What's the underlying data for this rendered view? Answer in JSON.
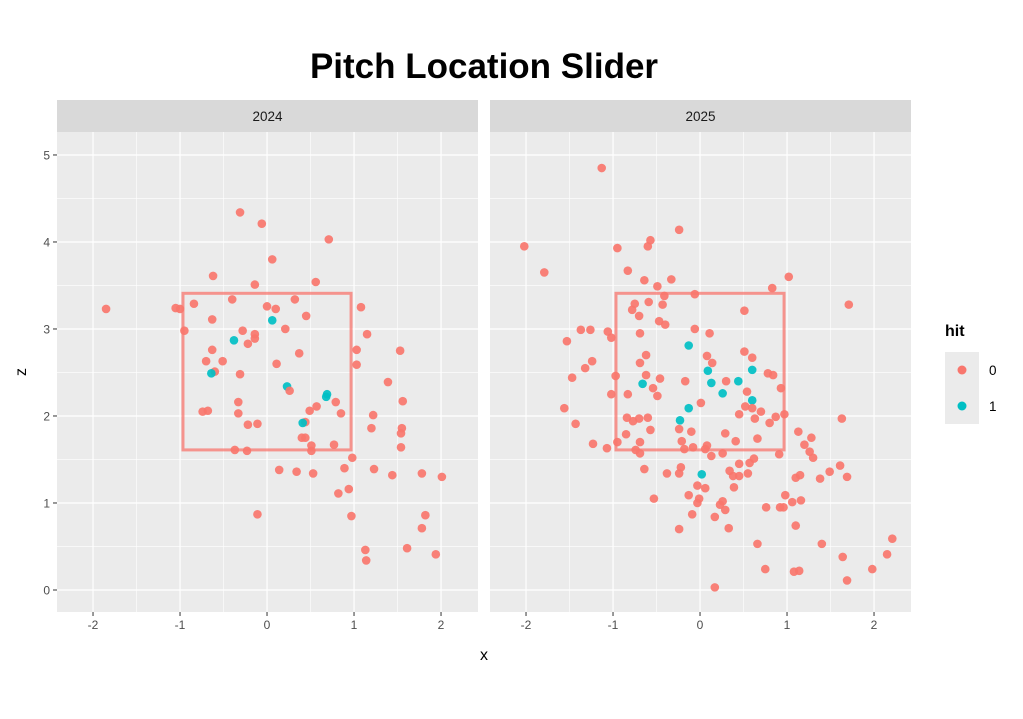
{
  "chart_data": {
    "type": "scatter",
    "title": "Pitch Location Slider",
    "xlabel": "x",
    "ylabel": "z",
    "xlim": [
      -2.414,
      2.425
    ],
    "ylim": [
      -0.253,
      5.264
    ],
    "x_ticks": [
      -2,
      -1,
      0,
      1,
      2
    ],
    "y_ticks": [
      0,
      1,
      2,
      3,
      4,
      5
    ],
    "grid": true,
    "strike_zone": {
      "x": [
        -0.966,
        0.966
      ],
      "z": [
        1.61,
        3.41
      ]
    },
    "legend": {
      "title": "hit",
      "position": "right",
      "entries": [
        {
          "label": "0",
          "color": "#F8766D"
        },
        {
          "label": "1",
          "color": "#00BFC4"
        }
      ]
    },
    "colors": {
      "0": "#F8766D",
      "1": "#00BFC4",
      "zone": "#F8766D"
    },
    "facets": [
      {
        "label": "2024",
        "points": [
          [
            -1.85,
            3.23,
            0
          ],
          [
            -0.31,
            4.34,
            0
          ],
          [
            -0.06,
            4.21,
            0
          ],
          [
            0.71,
            4.03,
            0
          ],
          [
            0.06,
            3.8,
            0
          ],
          [
            -0.62,
            3.61,
            0
          ],
          [
            0.56,
            3.54,
            0
          ],
          [
            -0.14,
            3.51,
            0
          ],
          [
            -1.05,
            3.24,
            0
          ],
          [
            -1.0,
            3.23,
            0
          ],
          [
            -0.84,
            3.29,
            0
          ],
          [
            -0.4,
            3.34,
            0
          ],
          [
            0.32,
            3.34,
            0
          ],
          [
            0.0,
            3.26,
            0
          ],
          [
            0.1,
            3.23,
            0
          ],
          [
            0.45,
            3.15,
            0
          ],
          [
            1.08,
            3.25,
            0
          ],
          [
            -0.63,
            3.11,
            0
          ],
          [
            -0.95,
            2.98,
            0
          ],
          [
            -0.28,
            2.98,
            0
          ],
          [
            -0.14,
            2.94,
            0
          ],
          [
            -0.14,
            2.89,
            0
          ],
          [
            0.21,
            3.0,
            0
          ],
          [
            1.15,
            2.94,
            0
          ],
          [
            -0.38,
            2.87,
            1
          ],
          [
            0.06,
            3.1,
            1
          ],
          [
            -0.22,
            2.83,
            0
          ],
          [
            -0.63,
            2.76,
            0
          ],
          [
            -0.51,
            2.63,
            0
          ],
          [
            -0.7,
            2.63,
            0
          ],
          [
            0.37,
            2.72,
            0
          ],
          [
            1.03,
            2.76,
            0
          ],
          [
            1.03,
            2.59,
            0
          ],
          [
            1.39,
            2.39,
            0
          ],
          [
            1.53,
            2.75,
            0
          ],
          [
            0.11,
            2.6,
            0
          ],
          [
            -0.31,
            2.48,
            0
          ],
          [
            -0.6,
            2.51,
            0
          ],
          [
            -0.64,
            2.49,
            1
          ],
          [
            0.23,
            2.34,
            1
          ],
          [
            0.26,
            2.29,
            0
          ],
          [
            0.68,
            2.22,
            1
          ],
          [
            0.69,
            2.25,
            1
          ],
          [
            0.79,
            2.16,
            0
          ],
          [
            0.57,
            2.11,
            0
          ],
          [
            0.49,
            2.06,
            0
          ],
          [
            0.85,
            2.03,
            0
          ],
          [
            1.22,
            2.01,
            0
          ],
          [
            1.56,
            2.17,
            0
          ],
          [
            -0.74,
            2.05,
            0
          ],
          [
            -0.68,
            2.06,
            0
          ],
          [
            -0.33,
            2.16,
            0
          ],
          [
            -0.33,
            2.03,
            0
          ],
          [
            -0.22,
            1.9,
            0
          ],
          [
            -0.11,
            1.91,
            0
          ],
          [
            0.44,
            1.93,
            0
          ],
          [
            0.41,
            1.92,
            1
          ],
          [
            1.2,
            1.86,
            0
          ],
          [
            1.55,
            1.86,
            0
          ],
          [
            1.54,
            1.8,
            0
          ],
          [
            0.4,
            1.75,
            0
          ],
          [
            0.44,
            1.75,
            0
          ],
          [
            0.51,
            1.66,
            0
          ],
          [
            0.51,
            1.6,
            0
          ],
          [
            0.77,
            1.67,
            0
          ],
          [
            -0.37,
            1.61,
            0
          ],
          [
            -0.23,
            1.6,
            0
          ],
          [
            1.54,
            1.64,
            0
          ],
          [
            0.98,
            1.52,
            0
          ],
          [
            0.89,
            1.4,
            0
          ],
          [
            0.14,
            1.38,
            0
          ],
          [
            0.34,
            1.36,
            0
          ],
          [
            0.53,
            1.34,
            0
          ],
          [
            1.23,
            1.39,
            0
          ],
          [
            1.44,
            1.32,
            0
          ],
          [
            1.78,
            1.34,
            0
          ],
          [
            2.01,
            1.3,
            0
          ],
          [
            0.82,
            1.11,
            0
          ],
          [
            0.94,
            1.16,
            0
          ],
          [
            -0.11,
            0.87,
            0
          ],
          [
            0.97,
            0.85,
            0
          ],
          [
            1.82,
            0.86,
            0
          ],
          [
            1.78,
            0.71,
            0
          ],
          [
            1.13,
            0.46,
            0
          ],
          [
            1.14,
            0.34,
            0
          ],
          [
            1.61,
            0.48,
            0
          ],
          [
            1.94,
            0.41,
            0
          ]
        ]
      },
      {
        "label": "2025",
        "points": [
          [
            -1.13,
            4.85,
            0
          ],
          [
            -2.02,
            3.95,
            0
          ],
          [
            -1.79,
            3.65,
            0
          ],
          [
            -0.95,
            3.93,
            0
          ],
          [
            -0.6,
            3.95,
            0
          ],
          [
            -0.57,
            4.02,
            0
          ],
          [
            -0.24,
            4.14,
            0
          ],
          [
            -0.83,
            3.67,
            0
          ],
          [
            -0.64,
            3.56,
            0
          ],
          [
            -0.33,
            3.57,
            0
          ],
          [
            -0.49,
            3.49,
            0
          ],
          [
            1.02,
            3.6,
            0
          ],
          [
            0.83,
            3.47,
            0
          ],
          [
            -0.41,
            3.38,
            0
          ],
          [
            -0.06,
            3.4,
            0
          ],
          [
            -0.75,
            3.29,
            0
          ],
          [
            -0.78,
            3.22,
            0
          ],
          [
            -0.59,
            3.31,
            0
          ],
          [
            -0.43,
            3.28,
            0
          ],
          [
            -0.7,
            3.15,
            0
          ],
          [
            0.51,
            3.21,
            0
          ],
          [
            1.71,
            3.28,
            0
          ],
          [
            -0.47,
            3.09,
            0
          ],
          [
            -0.4,
            3.05,
            0
          ],
          [
            -1.37,
            2.99,
            0
          ],
          [
            -1.26,
            2.99,
            0
          ],
          [
            -1.06,
            2.97,
            0
          ],
          [
            -1.02,
            2.9,
            0
          ],
          [
            -0.69,
            2.95,
            0
          ],
          [
            -0.06,
            3.0,
            0
          ],
          [
            0.11,
            2.95,
            0
          ],
          [
            -1.53,
            2.86,
            0
          ],
          [
            -0.13,
            2.81,
            1
          ],
          [
            -0.62,
            2.7,
            0
          ],
          [
            -0.69,
            2.61,
            0
          ],
          [
            0.08,
            2.69,
            0
          ],
          [
            0.14,
            2.61,
            0
          ],
          [
            0.51,
            2.74,
            0
          ],
          [
            0.6,
            2.67,
            0
          ],
          [
            -1.24,
            2.63,
            0
          ],
          [
            -1.32,
            2.55,
            0
          ],
          [
            0.09,
            2.52,
            1
          ],
          [
            0.6,
            2.53,
            1
          ],
          [
            0.78,
            2.49,
            0
          ],
          [
            0.84,
            2.47,
            0
          ],
          [
            -1.47,
            2.44,
            0
          ],
          [
            -0.97,
            2.46,
            0
          ],
          [
            -0.62,
            2.47,
            0
          ],
          [
            -0.46,
            2.43,
            0
          ],
          [
            -0.17,
            2.4,
            0
          ],
          [
            -0.66,
            2.37,
            1
          ],
          [
            0.13,
            2.38,
            1
          ],
          [
            0.3,
            2.4,
            0
          ],
          [
            0.44,
            2.4,
            1
          ],
          [
            -0.54,
            2.32,
            0
          ],
          [
            -0.49,
            2.23,
            0
          ],
          [
            -1.02,
            2.25,
            0
          ],
          [
            -0.83,
            2.25,
            0
          ],
          [
            0.26,
            2.26,
            1
          ],
          [
            0.54,
            2.28,
            0
          ],
          [
            0.93,
            2.32,
            0
          ],
          [
            0.6,
            2.18,
            1
          ],
          [
            -1.56,
            2.09,
            0
          ],
          [
            -0.13,
            2.09,
            1
          ],
          [
            0.01,
            2.15,
            0
          ],
          [
            0.52,
            2.11,
            0
          ],
          [
            0.6,
            2.09,
            0
          ],
          [
            0.45,
            2.02,
            0
          ],
          [
            0.7,
            2.05,
            0
          ],
          [
            0.97,
            2.02,
            0
          ],
          [
            0.87,
            1.99,
            0
          ],
          [
            0.63,
            1.97,
            0
          ],
          [
            0.8,
            1.92,
            0
          ],
          [
            1.63,
            1.97,
            0
          ],
          [
            -1.43,
            1.91,
            0
          ],
          [
            -0.23,
            1.95,
            1
          ],
          [
            -0.84,
            1.98,
            0
          ],
          [
            -0.77,
            1.94,
            0
          ],
          [
            -0.7,
            1.97,
            0
          ],
          [
            -0.6,
            1.98,
            0
          ],
          [
            -0.57,
            1.84,
            0
          ],
          [
            -0.24,
            1.85,
            0
          ],
          [
            -0.1,
            1.82,
            0
          ],
          [
            0.29,
            1.8,
            0
          ],
          [
            1.13,
            1.82,
            0
          ],
          [
            1.28,
            1.75,
            0
          ],
          [
            -0.85,
            1.79,
            0
          ],
          [
            0.41,
            1.71,
            0
          ],
          [
            0.66,
            1.74,
            0
          ],
          [
            1.2,
            1.67,
            0
          ],
          [
            -1.23,
            1.68,
            0
          ],
          [
            -1.07,
            1.63,
            0
          ],
          [
            -0.95,
            1.7,
            0
          ],
          [
            -0.69,
            1.7,
            0
          ],
          [
            -0.74,
            1.61,
            0
          ],
          [
            -0.69,
            1.57,
            0
          ],
          [
            -0.21,
            1.71,
            0
          ],
          [
            -0.18,
            1.62,
            0
          ],
          [
            -0.08,
            1.64,
            0
          ],
          [
            0.08,
            1.66,
            0
          ],
          [
            0.06,
            1.62,
            0
          ],
          [
            0.13,
            1.54,
            0
          ],
          [
            0.26,
            1.57,
            0
          ],
          [
            0.91,
            1.56,
            0
          ],
          [
            1.26,
            1.59,
            0
          ],
          [
            1.3,
            1.52,
            0
          ],
          [
            0.62,
            1.51,
            0
          ],
          [
            0.57,
            1.46,
            0
          ],
          [
            0.45,
            1.45,
            0
          ],
          [
            -0.64,
            1.39,
            0
          ],
          [
            -0.38,
            1.34,
            0
          ],
          [
            -0.22,
            1.41,
            0
          ],
          [
            -0.24,
            1.34,
            0
          ],
          [
            0.02,
            1.33,
            1
          ],
          [
            0.34,
            1.37,
            0
          ],
          [
            0.38,
            1.31,
            0
          ],
          [
            0.45,
            1.31,
            0
          ],
          [
            0.55,
            1.34,
            0
          ],
          [
            1.61,
            1.43,
            0
          ],
          [
            1.49,
            1.36,
            0
          ],
          [
            1.69,
            1.3,
            0
          ],
          [
            1.1,
            1.29,
            0
          ],
          [
            1.15,
            1.32,
            0
          ],
          [
            1.38,
            1.28,
            0
          ],
          [
            -0.03,
            1.2,
            0
          ],
          [
            0.06,
            1.17,
            0
          ],
          [
            0.39,
            1.18,
            0
          ],
          [
            -0.13,
            1.09,
            0
          ],
          [
            -0.01,
            1.05,
            0
          ],
          [
            -0.03,
            1.0,
            0
          ],
          [
            -0.53,
            1.05,
            0
          ],
          [
            0.98,
            1.09,
            0
          ],
          [
            1.06,
            1.01,
            0
          ],
          [
            1.16,
            1.03,
            0
          ],
          [
            0.76,
            0.95,
            0
          ],
          [
            0.92,
            0.95,
            0
          ],
          [
            0.96,
            0.95,
            0
          ],
          [
            0.26,
            1.02,
            0
          ],
          [
            0.23,
            0.98,
            0
          ],
          [
            0.29,
            0.92,
            0
          ],
          [
            -0.09,
            0.87,
            0
          ],
          [
            0.17,
            0.84,
            0
          ],
          [
            0.33,
            0.71,
            0
          ],
          [
            -0.24,
            0.7,
            0
          ],
          [
            1.1,
            0.74,
            0
          ],
          [
            0.66,
            0.53,
            0
          ],
          [
            1.4,
            0.53,
            0
          ],
          [
            2.21,
            0.59,
            0
          ],
          [
            2.15,
            0.41,
            0
          ],
          [
            1.64,
            0.38,
            0
          ],
          [
            0.75,
            0.24,
            0
          ],
          [
            1.08,
            0.21,
            0
          ],
          [
            1.14,
            0.22,
            0
          ],
          [
            1.98,
            0.24,
            0
          ],
          [
            1.69,
            0.11,
            0
          ],
          [
            0.17,
            0.03,
            0
          ]
        ]
      }
    ]
  }
}
